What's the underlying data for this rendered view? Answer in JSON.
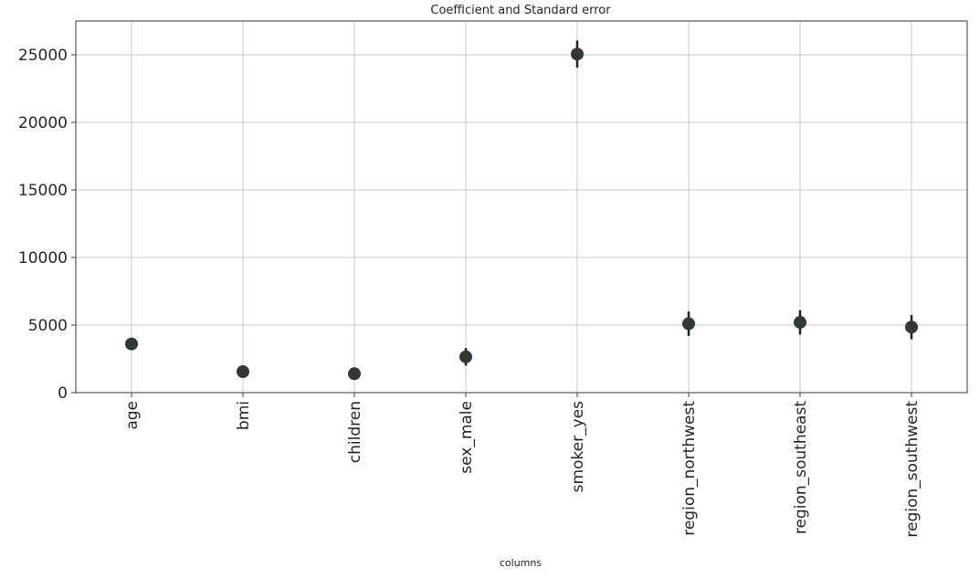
{
  "chart_data": {
    "type": "scatter",
    "title": "Coefficient and Standard error",
    "xlabel": "columns",
    "ylabel": "",
    "ylim": [
      0,
      27500
    ],
    "yticks": [
      0,
      5000,
      10000,
      15000,
      20000,
      25000
    ],
    "grid": true,
    "marker_color": "#2f3a30",
    "categories": [
      "age",
      "bmi",
      "children",
      "sex_male",
      "smoker_yes",
      "region_northwest",
      "region_southeast",
      "region_southwest"
    ],
    "values": [
      3600,
      1550,
      1400,
      2650,
      25050,
      5100,
      5200,
      4850
    ],
    "errors": [
      120,
      170,
      160,
      650,
      1000,
      900,
      900,
      900
    ]
  }
}
